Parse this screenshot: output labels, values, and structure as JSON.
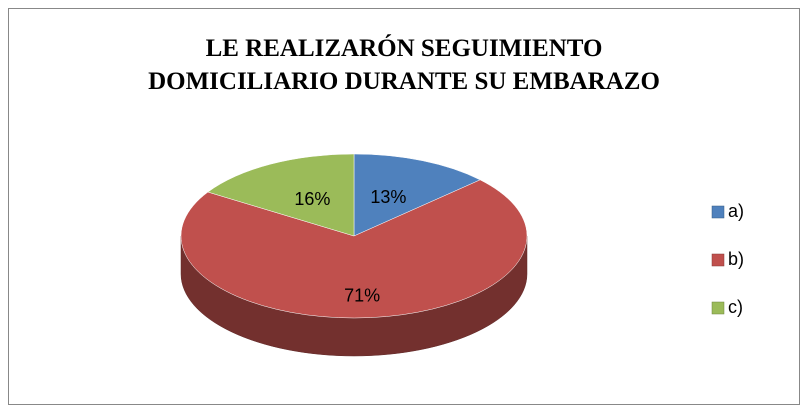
{
  "chart_data": {
    "type": "pie",
    "title": [
      "LE REALIZARÓN SEGUIMIENTO",
      "DOMICILIARIO DURANTE SU EMBARAZO"
    ],
    "categories": [
      "a)",
      "b)",
      "c)"
    ],
    "values": [
      13,
      71,
      16
    ],
    "value_labels": [
      "13%",
      "71%",
      "16%"
    ],
    "colors": [
      "#4f81bd",
      "#c0504d",
      "#9bbb59"
    ],
    "legend": "right"
  }
}
